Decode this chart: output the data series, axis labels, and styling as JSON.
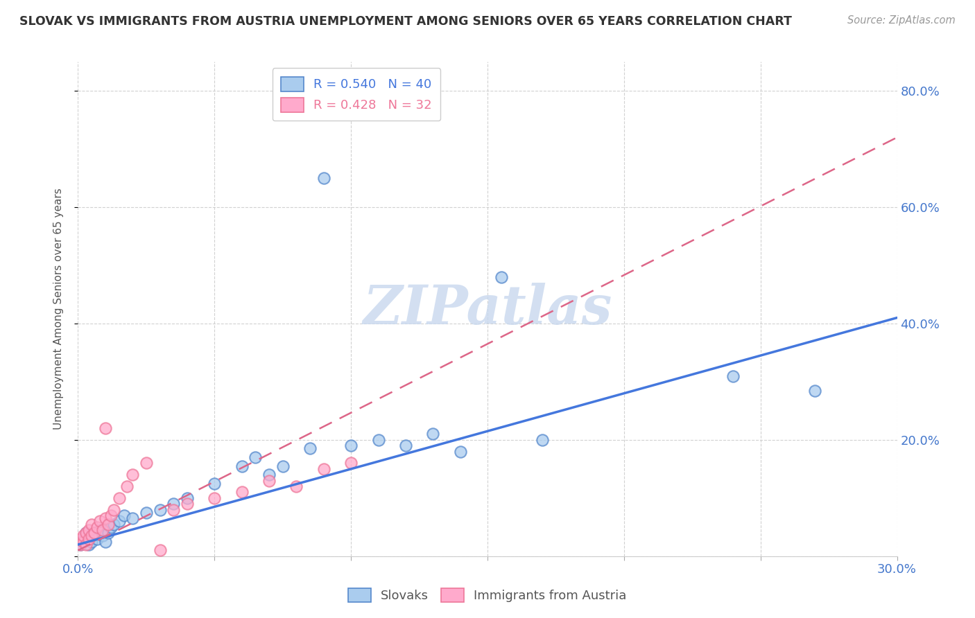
{
  "title": "SLOVAK VS IMMIGRANTS FROM AUSTRIA UNEMPLOYMENT AMONG SENIORS OVER 65 YEARS CORRELATION CHART",
  "source": "Source: ZipAtlas.com",
  "ylabel": "Unemployment Among Seniors over 65 years",
  "xlim": [
    0.0,
    0.3
  ],
  "ylim": [
    0.0,
    0.85
  ],
  "blue_R": 0.54,
  "blue_N": 40,
  "pink_R": 0.428,
  "pink_N": 32,
  "blue_color": "#AACCEE",
  "pink_color": "#FFAACC",
  "blue_edge_color": "#5588CC",
  "pink_edge_color": "#EE7799",
  "blue_line_color": "#4477DD",
  "pink_line_color": "#DD6688",
  "watermark": "ZIPatlas",
  "slovaks_x": [
    0.001,
    0.002,
    0.002,
    0.003,
    0.003,
    0.004,
    0.004,
    0.005,
    0.005,
    0.006,
    0.007,
    0.008,
    0.009,
    0.01,
    0.011,
    0.012,
    0.013,
    0.015,
    0.017,
    0.02,
    0.025,
    0.03,
    0.035,
    0.04,
    0.05,
    0.06,
    0.065,
    0.07,
    0.075,
    0.085,
    0.09,
    0.1,
    0.11,
    0.12,
    0.13,
    0.14,
    0.155,
    0.17,
    0.24,
    0.27
  ],
  "slovaks_y": [
    0.02,
    0.025,
    0.03,
    0.035,
    0.04,
    0.02,
    0.03,
    0.025,
    0.035,
    0.04,
    0.03,
    0.045,
    0.035,
    0.025,
    0.04,
    0.05,
    0.055,
    0.06,
    0.07,
    0.065,
    0.075,
    0.08,
    0.09,
    0.1,
    0.125,
    0.155,
    0.17,
    0.14,
    0.155,
    0.185,
    0.65,
    0.19,
    0.2,
    0.19,
    0.21,
    0.18,
    0.48,
    0.2,
    0.31,
    0.285
  ],
  "immigrants_x": [
    0.001,
    0.001,
    0.002,
    0.002,
    0.003,
    0.003,
    0.004,
    0.004,
    0.005,
    0.005,
    0.006,
    0.007,
    0.008,
    0.009,
    0.01,
    0.01,
    0.011,
    0.012,
    0.013,
    0.015,
    0.018,
    0.02,
    0.025,
    0.03,
    0.035,
    0.04,
    0.05,
    0.06,
    0.07,
    0.08,
    0.09,
    0.1
  ],
  "immigrants_y": [
    0.02,
    0.03,
    0.025,
    0.035,
    0.02,
    0.04,
    0.03,
    0.045,
    0.035,
    0.055,
    0.04,
    0.05,
    0.06,
    0.045,
    0.22,
    0.065,
    0.055,
    0.07,
    0.08,
    0.1,
    0.12,
    0.14,
    0.16,
    0.01,
    0.08,
    0.09,
    0.1,
    0.11,
    0.13,
    0.12,
    0.15,
    0.16
  ],
  "blue_trend_x": [
    0.0,
    0.3
  ],
  "blue_trend_y": [
    0.02,
    0.41
  ],
  "pink_trend_x": [
    0.0,
    0.3
  ],
  "pink_trend_y": [
    0.01,
    0.72
  ]
}
